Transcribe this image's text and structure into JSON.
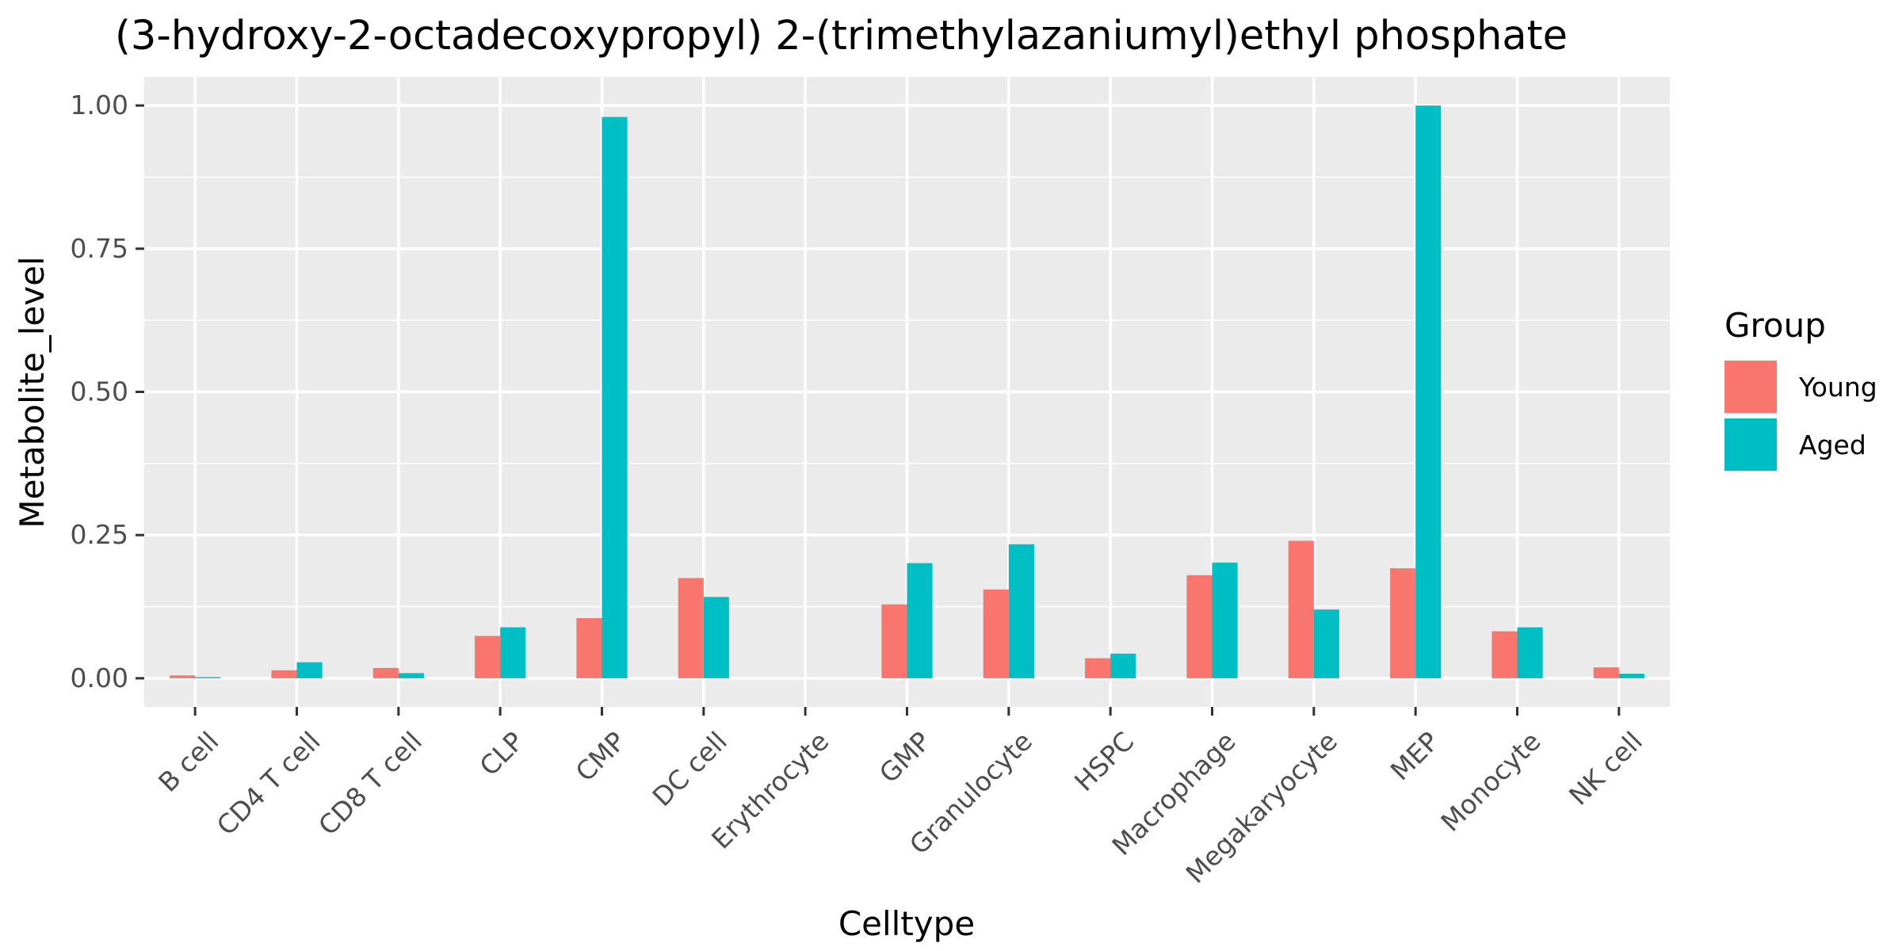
{
  "chart_data": {
    "type": "bar",
    "title": "(3-hydroxy-2-octadecoxypropyl) 2-(trimethylazaniumyl)ethyl phosphate",
    "xlabel": "Celltype",
    "ylabel": "Metabolite_level",
    "ylim": [
      -0.05,
      1.05
    ],
    "yticks": [
      0.0,
      0.25,
      0.5,
      0.75,
      1.0
    ],
    "ytick_labels": [
      "0.00",
      "0.25",
      "0.50",
      "0.75",
      "1.00"
    ],
    "grid": true,
    "legend": {
      "title": "Group",
      "position": "right"
    },
    "categories": [
      "B cell",
      "CD4 T cell",
      "CD8 T cell",
      "CLP",
      "CMP",
      "DC cell",
      "Erythrocyte",
      "GMP",
      "Granulocyte",
      "HSPC",
      "Macrophage",
      "Megakaryocyte",
      "MEP",
      "Monocyte",
      "NK cell"
    ],
    "series": [
      {
        "name": "Young",
        "color": "#F8766D",
        "values": [
          0.005,
          0.014,
          0.018,
          0.074,
          0.105,
          0.175,
          0.0,
          0.129,
          0.155,
          0.035,
          0.18,
          0.24,
          0.192,
          0.082,
          0.019
        ]
      },
      {
        "name": "Aged",
        "color": "#00BFC4",
        "values": [
          0.002,
          0.028,
          0.009,
          0.089,
          0.98,
          0.142,
          0.0,
          0.201,
          0.234,
          0.043,
          0.202,
          0.12,
          1.0,
          0.089,
          0.008
        ]
      }
    ]
  }
}
